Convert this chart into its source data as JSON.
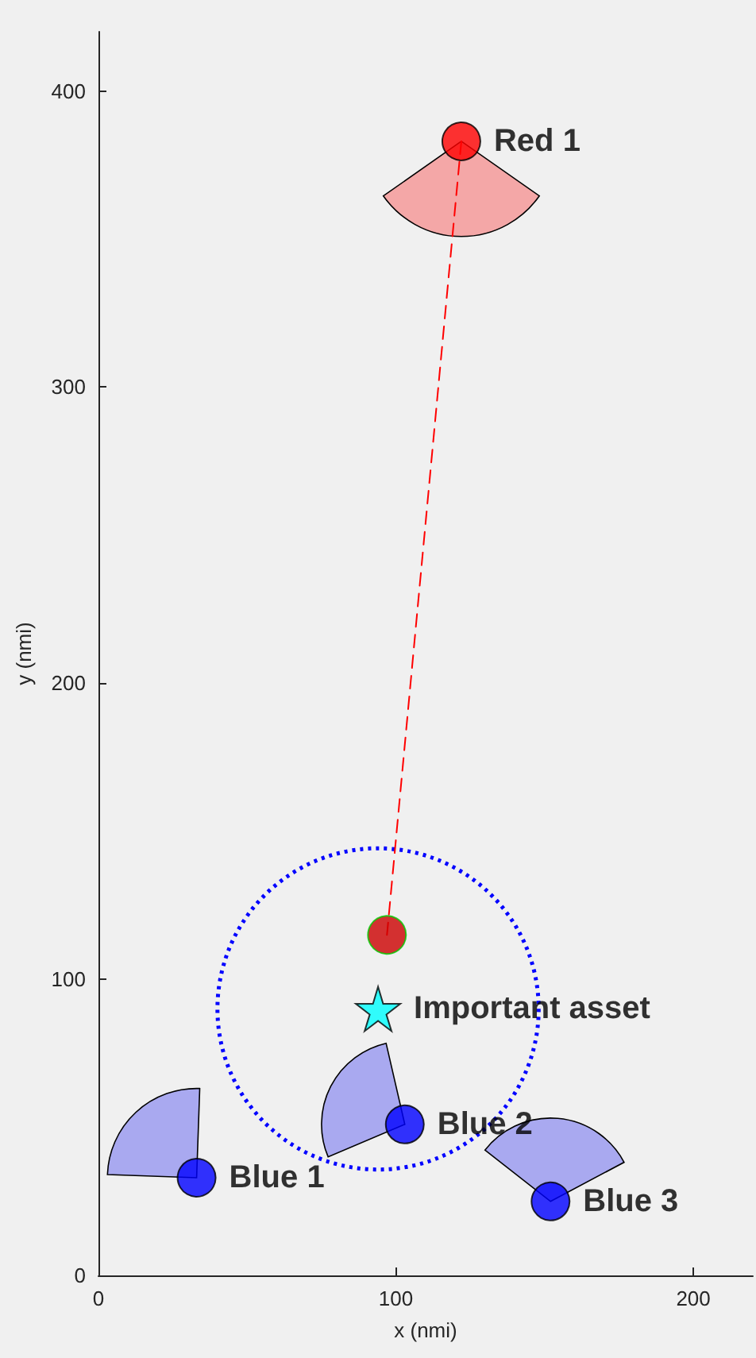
{
  "chart_data": {
    "type": "scatter",
    "xlabel": "x (nmi)",
    "ylabel": "y (nmi)",
    "xlim": [
      0,
      220
    ],
    "xticks": [
      0,
      100,
      200
    ],
    "ylim": [
      0,
      420
    ],
    "yticks": [
      0,
      100,
      200,
      300,
      400
    ],
    "grid": false,
    "legend": false,
    "series": [
      {
        "type": "line",
        "color": "#ff0000",
        "x": [
          122,
          97
        ],
        "values": [
          383,
          115
        ],
        "line_style": "dashed",
        "marker": "none"
      },
      {
        "name": "Red 1",
        "color": "#ff0000",
        "x": [
          122
        ],
        "values": [
          383
        ],
        "marker": "circle"
      },
      {
        "color": "#cc0000",
        "x": [
          97
        ],
        "values": [
          115
        ],
        "marker": "circle"
      },
      {
        "name": "Important asset",
        "color": "#00ffff",
        "x": [
          94
        ],
        "values": [
          90
        ],
        "marker": "star"
      },
      {
        "name": "Blue 1",
        "color": "#0000ff",
        "x": [
          33
        ],
        "values": [
          33
        ],
        "marker": "circle"
      },
      {
        "name": "Blue 2",
        "color": "#0000ff",
        "x": [
          103
        ],
        "values": [
          51
        ],
        "marker": "circle"
      },
      {
        "name": "Blue 3",
        "color": "#0000ff",
        "x": [
          152
        ],
        "values": [
          25
        ],
        "marker": "circle"
      }
    ]
  }
}
